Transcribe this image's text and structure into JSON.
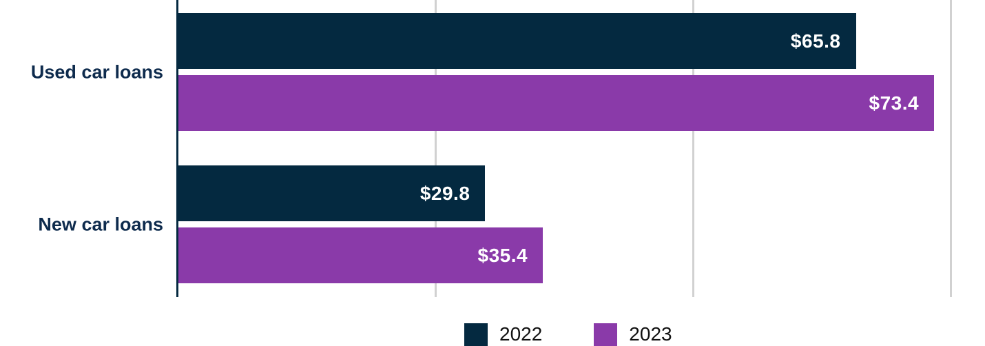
{
  "chart_data": {
    "type": "bar",
    "orientation": "horizontal",
    "categories": [
      "Used car loans",
      "New car loans"
    ],
    "series": [
      {
        "name": "2022",
        "color": "#042940",
        "values": [
          65.8,
          29.8
        ],
        "labels": [
          "$65.8",
          "$29.8"
        ]
      },
      {
        "name": "2023",
        "color": "#8a3aa9",
        "values": [
          73.4,
          35.4
        ],
        "labels": [
          "$73.4",
          "$35.4"
        ]
      }
    ],
    "value_prefix": "$",
    "xlim": [
      0,
      78.3
    ],
    "gridline_ticks": [
      25,
      50,
      75
    ],
    "grid": true,
    "legend_position": "bottom"
  },
  "colors": {
    "bar_2022": "#042940",
    "bar_2023": "#8a3aa9",
    "axis_line": "#042940",
    "gridline": "#d1d1d1",
    "category_label": "#0e2b4d",
    "legend_text": "#111111",
    "value_label": "#ffffff"
  }
}
